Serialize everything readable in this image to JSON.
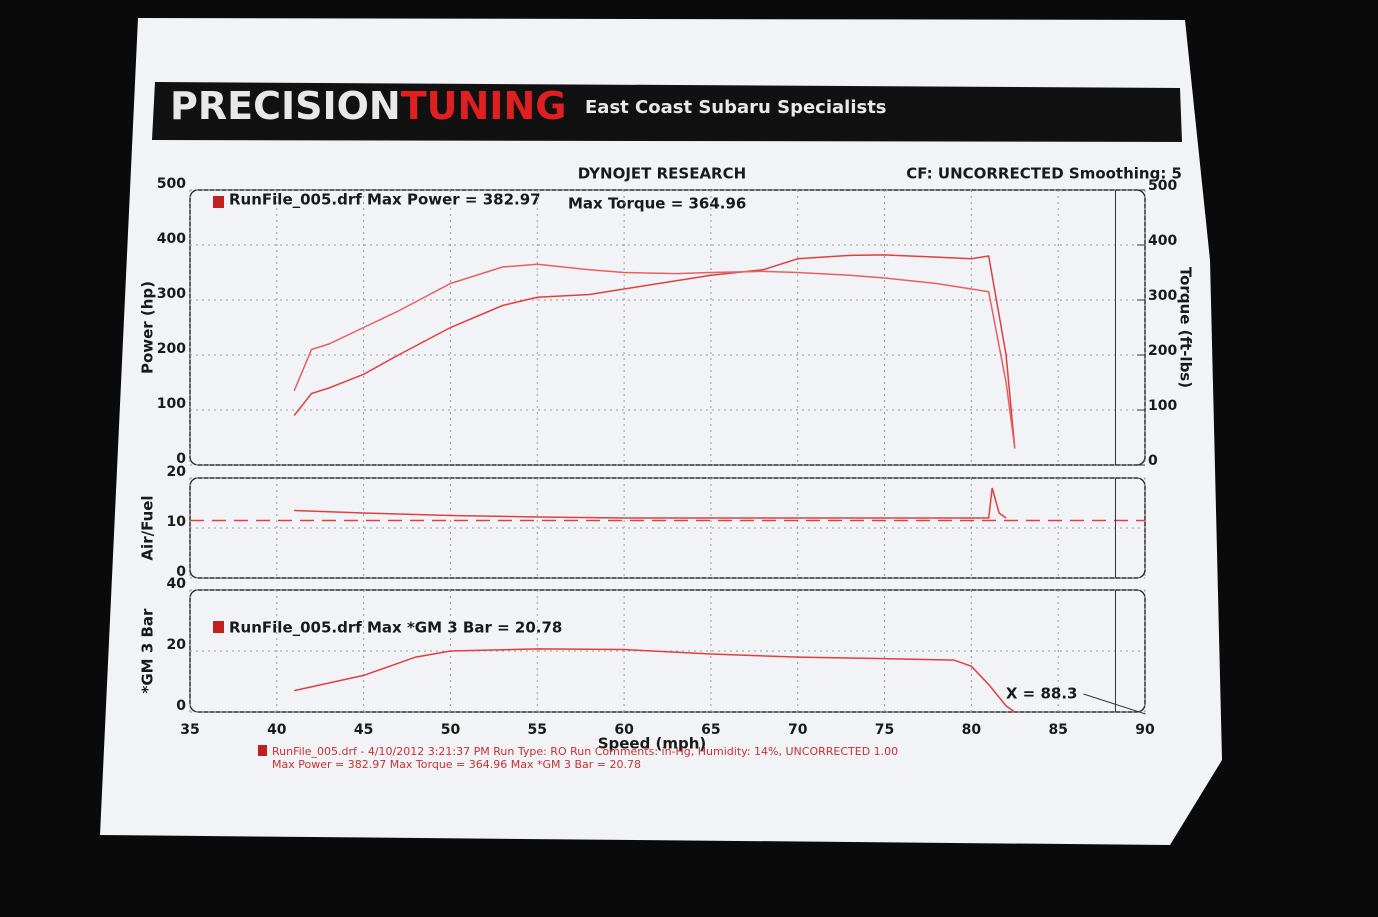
{
  "header": {
    "brand_first": "PRECISION",
    "brand_second": "TUNING",
    "tagline": "East Coast Subaru Specialists"
  },
  "chart_data": [
    {
      "type": "line",
      "title": "DYNOJET RESEARCH",
      "annotation": "CF: UNCORRECTED  Smoothing: 5",
      "legend_text": "RunFile_005.drf Max Power = 382.97",
      "legend_text_2": "Max Torque = 364.96",
      "y_label": "Power (hp)",
      "y2_label": "Torque (ft-lbs)",
      "ylim": [
        0,
        500
      ],
      "yticks": [
        0,
        100,
        200,
        300,
        400,
        500
      ],
      "y2lim": [
        0,
        500
      ],
      "y2ticks": [
        0,
        100,
        200,
        300,
        400,
        500
      ],
      "grid": true,
      "x": [
        41,
        42,
        43,
        45,
        47,
        50,
        53,
        55,
        58,
        60,
        63,
        65,
        68,
        70,
        73,
        75,
        78,
        80,
        81,
        82,
        82.5
      ],
      "series": [
        {
          "color": "#e04040",
          "values": [
            90,
            130,
            140,
            165,
            200,
            250,
            290,
            305,
            310,
            320,
            335,
            345,
            355,
            375,
            381,
            382,
            378,
            375,
            380,
            200,
            30
          ]
        },
        {
          "color": "#e86060",
          "axis": "y2",
          "values": [
            135,
            210,
            220,
            250,
            280,
            330,
            360,
            365,
            355,
            350,
            348,
            350,
            352,
            350,
            345,
            340,
            330,
            320,
            315,
            150,
            30
          ]
        }
      ]
    },
    {
      "type": "line",
      "y_label": "Air/Fuel",
      "ylim": [
        0,
        20
      ],
      "yticks": [
        0,
        10,
        20
      ],
      "grid": true,
      "series": [
        {
          "color": "#e04040",
          "x": [
            41,
            45,
            50,
            55,
            60,
            70,
            80,
            81,
            81.2,
            81.6,
            82
          ],
          "values": [
            13.5,
            13,
            12.5,
            12.2,
            12,
            12,
            12,
            12,
            18,
            13,
            12
          ]
        },
        {
          "color": "#e04040",
          "dash": true,
          "x": [
            35,
            90
          ],
          "values": [
            11.5,
            11.5
          ]
        }
      ]
    },
    {
      "type": "line",
      "legend_text": "RunFile_005.drf Max *GM 3 Bar = 20.78",
      "y_label": "*GM 3 Bar",
      "x_label": "Speed (mph)",
      "xlim": [
        35,
        90
      ],
      "xticks": [
        35,
        40,
        45,
        50,
        55,
        60,
        65,
        70,
        75,
        80,
        85,
        90
      ],
      "ylim": [
        0,
        40
      ],
      "yticks": [
        0,
        20,
        40
      ],
      "grid": true,
      "cursor": {
        "value": 88.3,
        "label": "X = 88.3"
      },
      "series": [
        {
          "color": "#e04040",
          "x": [
            41,
            45,
            48,
            50,
            55,
            60,
            65,
            70,
            75,
            79,
            80,
            81,
            82,
            82.5
          ],
          "values": [
            7,
            12,
            18,
            20,
            20.7,
            20.5,
            19,
            18,
            17.5,
            17,
            15,
            9,
            2,
            0
          ]
        }
      ]
    }
  ],
  "footer": [
    "RunFile_005.drf - 4/10/2012 3:21:37 PM  Run Type: RO  Run Comments:   in-Hg,  Humidity:  14%,  UNCORRECTED  1.00",
    "Max Power = 382.97  Max Torque = 364.96  Max *GM 3 Bar = 20.78"
  ]
}
